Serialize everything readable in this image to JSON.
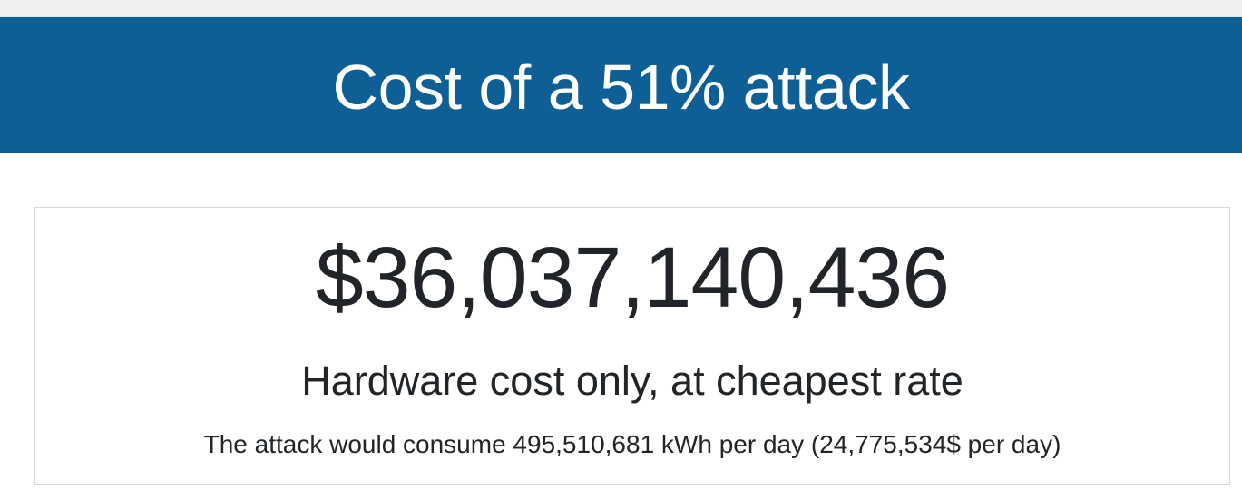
{
  "header": {
    "title": "Cost of a 51% attack"
  },
  "card": {
    "amount": "$36,037,140,436",
    "caption": "Hardware cost only, at cheapest rate",
    "consumption": "The attack would consume 495,510,681 kWh per day (24,775,534$ per day)"
  },
  "colors": {
    "banner_background": "#0e5f95",
    "banner_text": "#ffffff",
    "body_text": "#212529",
    "card_border": "#d6d9dc"
  }
}
